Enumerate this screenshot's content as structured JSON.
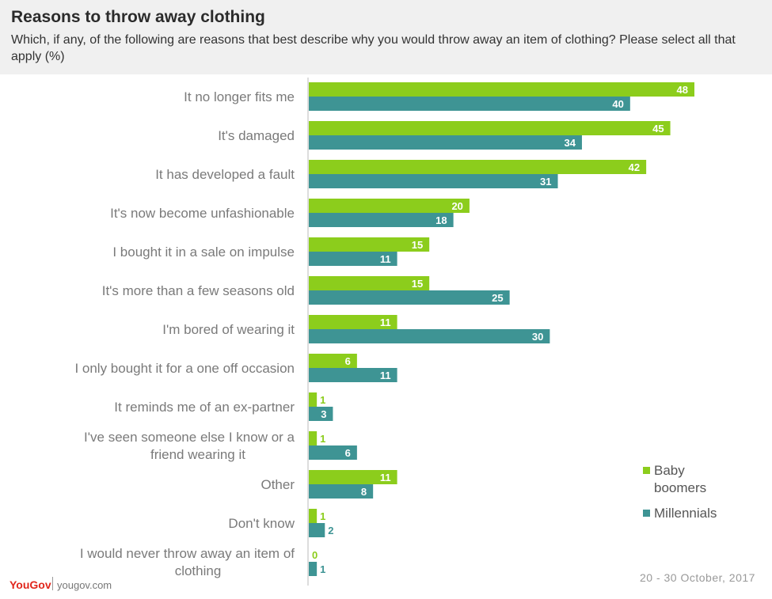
{
  "header": {
    "title": "Reasons to throw away clothing",
    "subtitle": "Which, if any, of the following are reasons that best describe why you would throw away an item of clothing? Please select all that apply (%)"
  },
  "footer": {
    "logo": "YouGov",
    "site": "yougov.com",
    "date": "20 - 30 October, 2017"
  },
  "chart_data": {
    "type": "bar",
    "orientation": "horizontal",
    "categories": [
      "It no longer fits me",
      "It's damaged",
      "It has developed a fault",
      "It's now become unfashionable",
      "I bought it in a sale on impulse",
      "It's more than a few seasons old",
      "I'm bored of wearing it",
      "I only bought it for a one off occasion",
      "It reminds me of an ex-partner",
      "I've seen someone else I know or a friend wearing it",
      "Other",
      "Don't know",
      "I would never throw away an item of clothing"
    ],
    "series": [
      {
        "name": "Baby boomers",
        "color": "#8ccd1c",
        "values": [
          48,
          45,
          42,
          20,
          15,
          15,
          11,
          6,
          1,
          1,
          11,
          1,
          0
        ]
      },
      {
        "name": "Millennials",
        "color": "#3e9494",
        "values": [
          40,
          34,
          31,
          18,
          11,
          25,
          30,
          11,
          3,
          6,
          8,
          2,
          1
        ]
      }
    ],
    "xlim": [
      0,
      48
    ],
    "grid": false,
    "legend": "bottom-right"
  }
}
